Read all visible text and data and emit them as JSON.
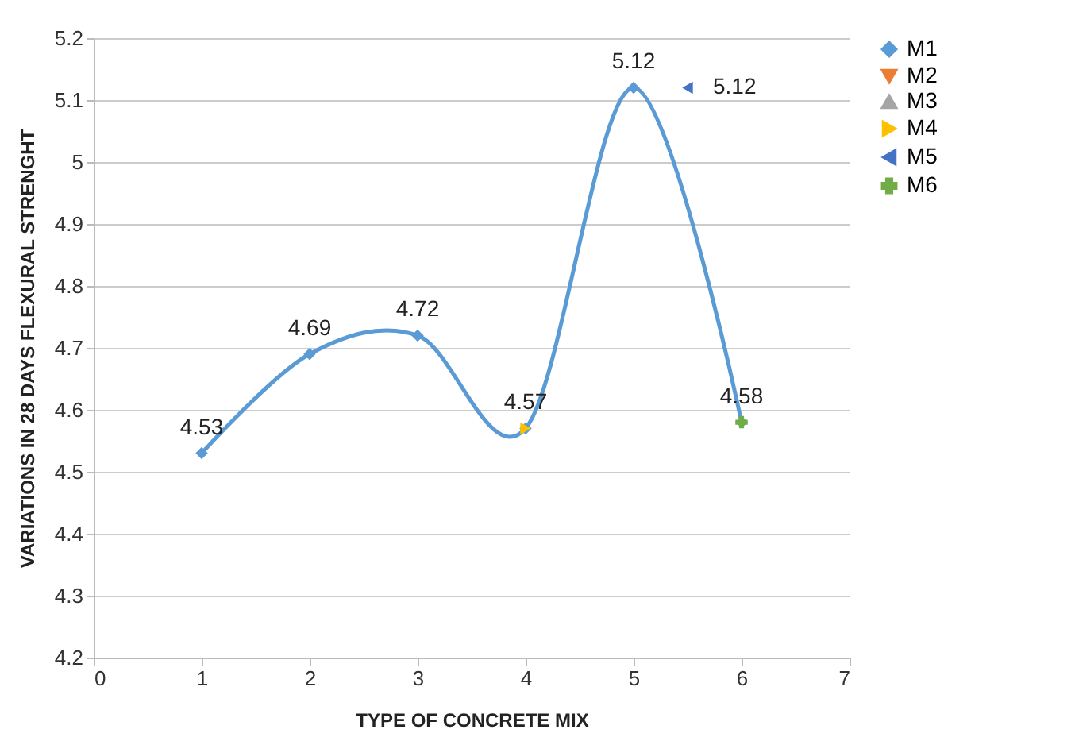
{
  "chart_data": {
    "type": "line",
    "xlabel": "TYPE OF CONCRETE MIX",
    "ylabel": "VARIATIONS IN 28 DAYS FLEXURAL  STRENGHT",
    "xlim": [
      0,
      7
    ],
    "xticks": [
      0,
      1,
      2,
      3,
      4,
      5,
      6,
      7
    ],
    "ylim": [
      4.2,
      5.2
    ],
    "yticks": [
      4.2,
      4.3,
      4.4,
      4.5,
      4.6,
      4.7,
      4.8,
      4.9,
      5,
      5.1,
      5.2
    ],
    "grid": "y",
    "legend": "right",
    "series": [
      {
        "name": "M1",
        "color": "#5b9bd5",
        "marker": "diamond",
        "x": [
          1,
          2,
          3,
          4,
          5,
          6
        ],
        "values": [
          4.53,
          4.69,
          4.72,
          4.57,
          5.12,
          4.58
        ],
        "value_labels": [
          "4.53",
          "4.69",
          "4.72",
          "4.57",
          "5.12",
          "4.58"
        ]
      },
      {
        "name": "M2",
        "color": "#ed7d31",
        "marker": "triangle-down"
      },
      {
        "name": "M3",
        "color": "#a5a5a5",
        "marker": "triangle-up"
      },
      {
        "name": "M4",
        "color": "#ffc000",
        "marker": "triangle-right",
        "x": [
          4
        ],
        "values": [
          4.57
        ]
      },
      {
        "name": "M5",
        "color": "#4472c4",
        "marker": "triangle-left",
        "x": [
          5.5
        ],
        "values": [
          5.12
        ],
        "value_labels": [
          "5.12"
        ]
      },
      {
        "name": "M6",
        "color": "#70ad47",
        "marker": "cross",
        "x": [
          6
        ],
        "values": [
          4.58
        ]
      }
    ]
  }
}
